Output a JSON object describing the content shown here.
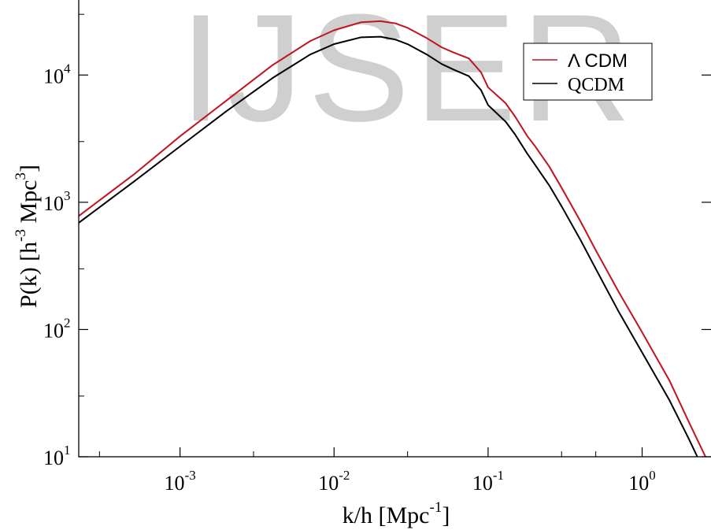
{
  "watermark": "IJSER",
  "chart_data": {
    "type": "line",
    "title": "",
    "xlabel": {
      "base": "k/h [Mpc",
      "sup": "-1",
      "close": "]"
    },
    "ylabel": {
      "p1": "P(k) [h",
      "s1": "-3",
      "p2": " Mpc",
      "s2": "3",
      "p3": "]"
    },
    "x_scale": "log",
    "y_scale": "log",
    "xlim": [
      0.00022,
      2.9
    ],
    "ylim": [
      10,
      40000
    ],
    "grid": false,
    "legend_position": "top-right",
    "x_ticks": [
      {
        "base": "10",
        "exp": "-3",
        "value": 0.001
      },
      {
        "base": "10",
        "exp": "-2",
        "value": 0.01
      },
      {
        "base": "10",
        "exp": "-1",
        "value": 0.1
      },
      {
        "base": "10",
        "exp": "0",
        "value": 1
      }
    ],
    "y_ticks": [
      {
        "base": "10",
        "exp": "1",
        "value": 10
      },
      {
        "base": "10",
        "exp": "2",
        "value": 100
      },
      {
        "base": "10",
        "exp": "3",
        "value": 1000
      },
      {
        "base": "10",
        "exp": "4",
        "value": 10000
      }
    ],
    "series": [
      {
        "name": "Λ CDM",
        "color": "#c0141e",
        "points": [
          [
            0.00022,
            780
          ],
          [
            0.0005,
            1650
          ],
          [
            0.001,
            3300
          ],
          [
            0.002,
            6300
          ],
          [
            0.004,
            12000
          ],
          [
            0.007,
            18500
          ],
          [
            0.01,
            22500
          ],
          [
            0.015,
            26000
          ],
          [
            0.02,
            26500
          ],
          [
            0.025,
            25500
          ],
          [
            0.03,
            23500
          ],
          [
            0.04,
            19500
          ],
          [
            0.05,
            16500
          ],
          [
            0.06,
            15000
          ],
          [
            0.075,
            13500
          ],
          [
            0.09,
            10500
          ],
          [
            0.1,
            8000
          ],
          [
            0.13,
            6000
          ],
          [
            0.15,
            4700
          ],
          [
            0.18,
            3300
          ],
          [
            0.2,
            2800
          ],
          [
            0.25,
            1900
          ],
          [
            0.3,
            1300
          ],
          [
            0.4,
            700
          ],
          [
            0.5,
            420
          ],
          [
            0.7,
            200
          ],
          [
            1.0,
            95
          ],
          [
            1.5,
            40
          ],
          [
            2.0,
            19
          ],
          [
            2.6,
            9.8
          ]
        ]
      },
      {
        "name": "QCDM",
        "color": "#000000",
        "points": [
          [
            0.00022,
            690
          ],
          [
            0.0005,
            1450
          ],
          [
            0.001,
            2750
          ],
          [
            0.002,
            5200
          ],
          [
            0.004,
            9500
          ],
          [
            0.007,
            14500
          ],
          [
            0.01,
            17500
          ],
          [
            0.015,
            19800
          ],
          [
            0.02,
            20000
          ],
          [
            0.025,
            19000
          ],
          [
            0.03,
            17500
          ],
          [
            0.04,
            14500
          ],
          [
            0.05,
            12200
          ],
          [
            0.06,
            11000
          ],
          [
            0.075,
            9800
          ],
          [
            0.09,
            7600
          ],
          [
            0.1,
            5800
          ],
          [
            0.13,
            4300
          ],
          [
            0.15,
            3400
          ],
          [
            0.18,
            2400
          ],
          [
            0.2,
            2000
          ],
          [
            0.25,
            1350
          ],
          [
            0.3,
            930
          ],
          [
            0.4,
            500
          ],
          [
            0.5,
            300
          ],
          [
            0.7,
            140
          ],
          [
            1.0,
            66
          ],
          [
            1.5,
            28
          ],
          [
            2.0,
            14
          ],
          [
            2.3,
            9.8
          ]
        ]
      }
    ]
  }
}
